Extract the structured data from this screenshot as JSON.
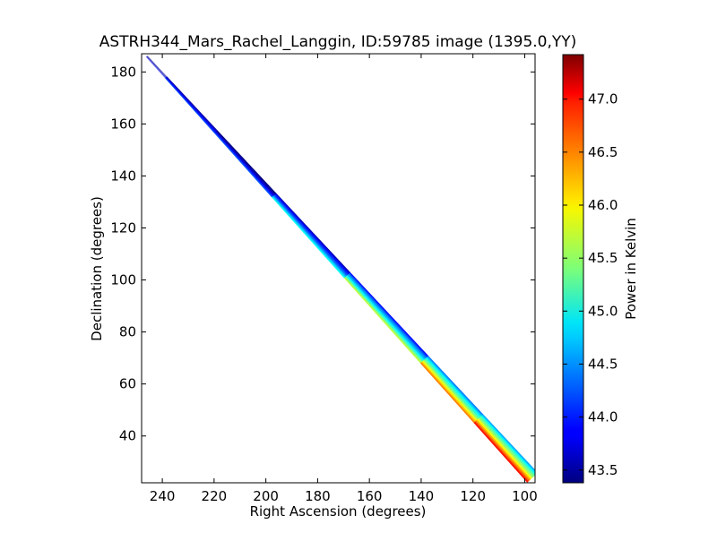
{
  "chart_data": {
    "type": "heatmap",
    "title": "ASTRH344_Mars_Rachel_Langgin, ID:59785 image (1395.0,YY)",
    "xlabel": "Right Ascension (degrees)",
    "ylabel": "Declination (degrees)",
    "x_axis_reversed": true,
    "xlim": [
      248,
      96
    ],
    "ylim": [
      22,
      187
    ],
    "xticks": [
      240,
      220,
      200,
      180,
      160,
      140,
      120,
      100
    ],
    "yticks": [
      40,
      60,
      80,
      100,
      120,
      140,
      160,
      180
    ],
    "grid": false,
    "colorbar": {
      "label": "Power in Kelvin",
      "colormap": "jet",
      "range": [
        43.38,
        47.42
      ],
      "ticks": [
        "43.5",
        "44.0",
        "44.5",
        "45.0",
        "45.5",
        "46.0",
        "46.5",
        "47.0"
      ]
    },
    "scan_track": {
      "start": {
        "ra": 246,
        "dec": 186
      },
      "end": {
        "ra": 97,
        "dec": 24
      },
      "segments": [
        {
          "t0": 0.0,
          "t1": 0.05,
          "value": 43.6,
          "alpha": 0.3
        },
        {
          "t0": 0.05,
          "t1": 0.18,
          "value": 43.8
        },
        {
          "t0": 0.18,
          "t1": 0.33,
          "value": 43.7
        },
        {
          "t0": 0.33,
          "t1": 0.52,
          "value": 44.2
        },
        {
          "t0": 0.52,
          "t1": 0.72,
          "value": 44.7
        },
        {
          "t0": 0.72,
          "t1": 0.86,
          "value": 45.3
        },
        {
          "t0": 0.86,
          "t1": 1.0,
          "value": 45.6
        }
      ],
      "cross_profile": [
        {
          "offset": -1.0,
          "delta": -1.2
        },
        {
          "offset": -0.5,
          "delta": -0.5
        },
        {
          "offset": 0.0,
          "delta": 0.0
        },
        {
          "offset": 0.5,
          "delta": 0.7
        },
        {
          "offset": 1.0,
          "delta": 1.4
        }
      ]
    }
  }
}
